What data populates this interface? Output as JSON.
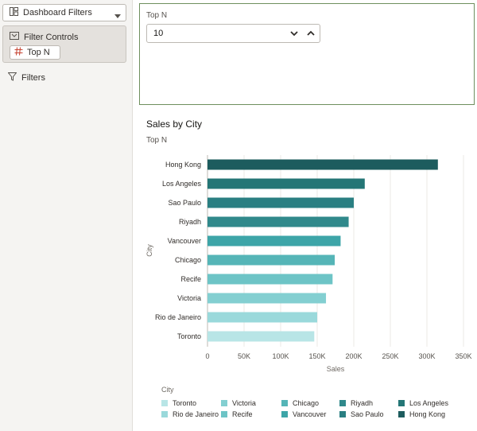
{
  "left_panel": {
    "dashboard_filters_label": "Dashboard Filters",
    "filter_controls_label": "Filter Controls",
    "chip_label": "Top N",
    "filters_label": "Filters"
  },
  "topn_control": {
    "label": "Top N",
    "value": "10"
  },
  "chart_data": {
    "type": "bar",
    "orientation": "horizontal",
    "title": "Sales by City",
    "subtitle": "Top N",
    "xlabel": "Sales",
    "ylabel": "City",
    "xlim": [
      0,
      350000
    ],
    "x_ticks": [
      "0",
      "50K",
      "100K",
      "150K",
      "200K",
      "250K",
      "300K",
      "350K"
    ],
    "grid": true,
    "legend_title": "City",
    "legend_position": "bottom",
    "categories": [
      "Hong Kong",
      "Los Angeles",
      "Sao Paulo",
      "Riyadh",
      "Vancouver",
      "Chicago",
      "Recife",
      "Victoria",
      "Rio de Janeiro",
      "Toronto"
    ],
    "values": [
      315000,
      215000,
      200000,
      193000,
      182000,
      174000,
      171000,
      162000,
      150000,
      146000
    ],
    "colors": [
      "#1d5c5e",
      "#247676",
      "#2a7f82",
      "#30898b",
      "#3da5a8",
      "#55b5b7",
      "#6dc4c6",
      "#83cfd1",
      "#9ad9db",
      "#b8e5e6"
    ],
    "legend": [
      [
        "Toronto",
        "Rio de Janeiro"
      ],
      [
        "Victoria",
        "Recife"
      ],
      [
        "Chicago",
        "Vancouver"
      ],
      [
        "Riyadh",
        "Sao Paulo"
      ],
      [
        "Los Angeles",
        "Hong Kong"
      ]
    ]
  }
}
